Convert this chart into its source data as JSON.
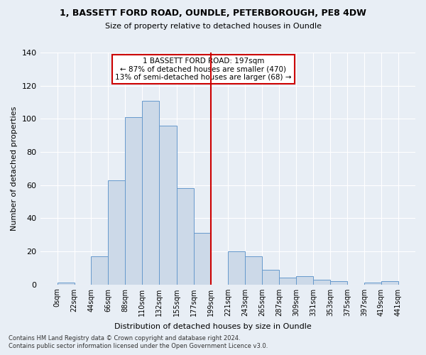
{
  "title": "1, BASSETT FORD ROAD, OUNDLE, PETERBOROUGH, PE8 4DW",
  "subtitle": "Size of property relative to detached houses in Oundle",
  "xlabel": "Distribution of detached houses by size in Oundle",
  "ylabel": "Number of detached properties",
  "bar_values": [
    1,
    0,
    17,
    63,
    101,
    111,
    96,
    58,
    31,
    0,
    20,
    17,
    9,
    4,
    5,
    3,
    2,
    0,
    1,
    2
  ],
  "bin_edges": [
    0,
    22,
    44,
    66,
    88,
    110,
    132,
    155,
    177,
    199,
    221,
    243,
    265,
    287,
    309,
    331,
    353,
    375,
    397,
    419,
    441
  ],
  "bar_color": "#ccd9e8",
  "bar_edgecolor": "#6699cc",
  "vline_x": 199,
  "vline_color": "#cc0000",
  "annotation_text": "1 BASSETT FORD ROAD: 197sqm\n← 87% of detached houses are smaller (470)\n13% of semi-detached houses are larger (68) →",
  "annotation_box_color": "#cc0000",
  "ylim": [
    0,
    140
  ],
  "yticks": [
    0,
    20,
    40,
    60,
    80,
    100,
    120,
    140
  ],
  "tick_labels": [
    "0sqm",
    "22sqm",
    "44sqm",
    "66sqm",
    "88sqm",
    "110sqm",
    "132sqm",
    "155sqm",
    "177sqm",
    "199sqm",
    "221sqm",
    "243sqm",
    "265sqm",
    "287sqm",
    "309sqm",
    "331sqm",
    "353sqm",
    "375sqm",
    "397sqm",
    "419sqm",
    "441sqm"
  ],
  "footnote1": "Contains HM Land Registry data © Crown copyright and database right 2024.",
  "footnote2": "Contains public sector information licensed under the Open Government Licence v3.0.",
  "bg_color": "#e8eef5",
  "plot_bg_color": "#e8eef5",
  "title_fontsize": 9,
  "subtitle_fontsize": 8,
  "ylabel_fontsize": 8,
  "xlabel_fontsize": 8,
  "tick_fontsize": 7,
  "annot_fontsize": 7.5
}
